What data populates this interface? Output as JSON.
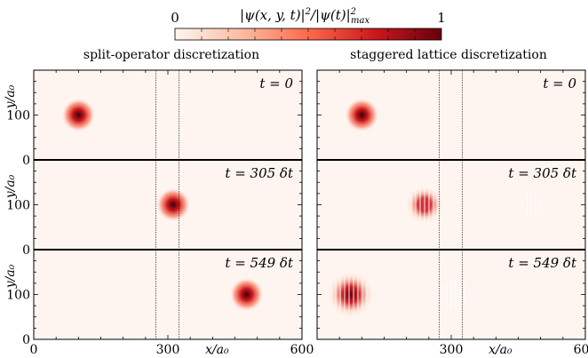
{
  "colorbar": {
    "label": "|ψ(x, y, t)|² / |ψ(t)|²max",
    "label_main": "|ψ(x, y, t)|",
    "label_sup": "2",
    "label_mid": "/|ψ(t)|",
    "label_sub": "max",
    "min_label": "0",
    "max_label": "1",
    "colors": [
      "#fff5f0",
      "#fcbba1",
      "#fb6a4a",
      "#cb181d",
      "#67000d"
    ]
  },
  "columns": [
    {
      "title": "split-operator discretization"
    },
    {
      "title": "staggered lattice discretization"
    }
  ],
  "rows": [
    {
      "time_label": "t = 0"
    },
    {
      "time_label": "t = 305 δt"
    },
    {
      "time_label": "t = 549 δt"
    }
  ],
  "axes": {
    "xlabel": "x/a₀",
    "ylabel": "y/a₀",
    "x_ticks": [
      [
        "0",
        "300",
        "600"
      ],
      [
        "",
        "300",
        "600"
      ]
    ],
    "y_ticks": [
      "0",
      "100"
    ]
  },
  "chart_data": {
    "type": "heatmap",
    "title": "",
    "colorscale": "Reds",
    "value_range": [
      0,
      1
    ],
    "xlim": [
      0,
      600
    ],
    "ylim": [
      0,
      200
    ],
    "barrier_lines_x": [
      273,
      325
    ],
    "panels": [
      {
        "column": 0,
        "row": 0,
        "blobs": [
          {
            "x": 100,
            "y": 100,
            "sigma": 16,
            "amp": 1.0
          }
        ]
      },
      {
        "column": 1,
        "row": 0,
        "blobs": [
          {
            "x": 100,
            "y": 100,
            "sigma": 16,
            "amp": 1.0
          }
        ]
      },
      {
        "column": 0,
        "row": 1,
        "blobs": [
          {
            "x": 312,
            "y": 100,
            "sigma": 16,
            "amp": 1.0
          }
        ]
      },
      {
        "column": 1,
        "row": 1,
        "blobs": [
          {
            "x": 240,
            "y": 100,
            "sigma": 18,
            "amp": 0.8,
            "stripes": true
          },
          {
            "x": 330,
            "y": 100,
            "sigma": 14,
            "amp": 0.04
          },
          {
            "x": 480,
            "y": 100,
            "sigma": 12,
            "amp": 0.06,
            "stripes": true
          }
        ]
      },
      {
        "column": 0,
        "row": 2,
        "blobs": [
          {
            "x": 476,
            "y": 100,
            "sigma": 16,
            "amp": 1.0
          }
        ]
      },
      {
        "column": 1,
        "row": 2,
        "blobs": [
          {
            "x": 75,
            "y": 100,
            "sigma": 22,
            "amp": 0.9,
            "stripes": true
          },
          {
            "x": 305,
            "y": 100,
            "sigma": 16,
            "amp": 0.08,
            "stripes": true
          },
          {
            "x": 485,
            "y": 100,
            "sigma": 12,
            "amp": 0.08
          }
        ]
      }
    ]
  }
}
